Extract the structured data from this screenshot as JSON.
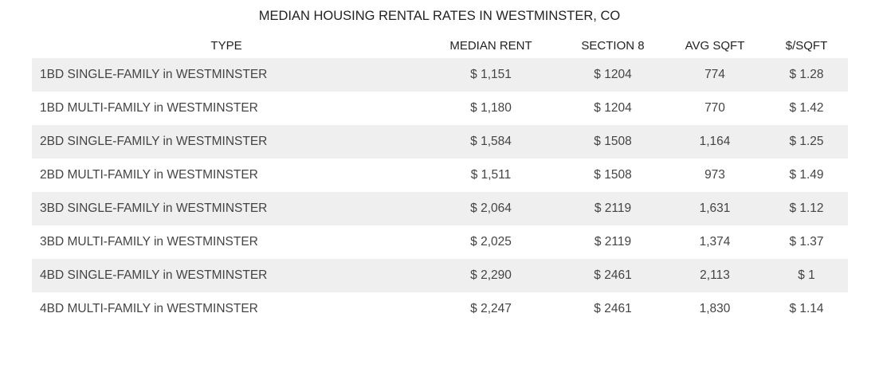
{
  "chart_data": {
    "type": "table",
    "title": "MEDIAN HOUSING RENTAL RATES IN WESTMINSTER, CO",
    "columns": [
      "TYPE",
      "MEDIAN RENT",
      "SECTION 8",
      "AVG SQFT",
      "$/SQFT"
    ],
    "rows": [
      [
        "1BD SINGLE-FAMILY in WESTMINSTER",
        "$ 1,151",
        "$ 1204",
        "774",
        "$ 1.28"
      ],
      [
        "1BD MULTI-FAMILY in WESTMINSTER",
        "$ 1,180",
        "$ 1204",
        "770",
        "$ 1.42"
      ],
      [
        "2BD SINGLE-FAMILY in WESTMINSTER",
        "$ 1,584",
        "$ 1508",
        "1,164",
        "$ 1.25"
      ],
      [
        "2BD MULTI-FAMILY in WESTMINSTER",
        "$ 1,511",
        "$ 1508",
        "973",
        "$ 1.49"
      ],
      [
        "3BD SINGLE-FAMILY in WESTMINSTER",
        "$ 2,064",
        "$ 2119",
        "1,631",
        "$ 1.12"
      ],
      [
        "3BD MULTI-FAMILY in WESTMINSTER",
        "$ 2,025",
        "$ 2119",
        "1,374",
        "$ 1.37"
      ],
      [
        "4BD SINGLE-FAMILY in WESTMINSTER",
        "$ 2,290",
        "$ 2461",
        "2,113",
        "$ 1"
      ],
      [
        "4BD MULTI-FAMILY in WESTMINSTER",
        "$ 2,247",
        "$ 2461",
        "1,830",
        "$ 1.14"
      ]
    ]
  }
}
